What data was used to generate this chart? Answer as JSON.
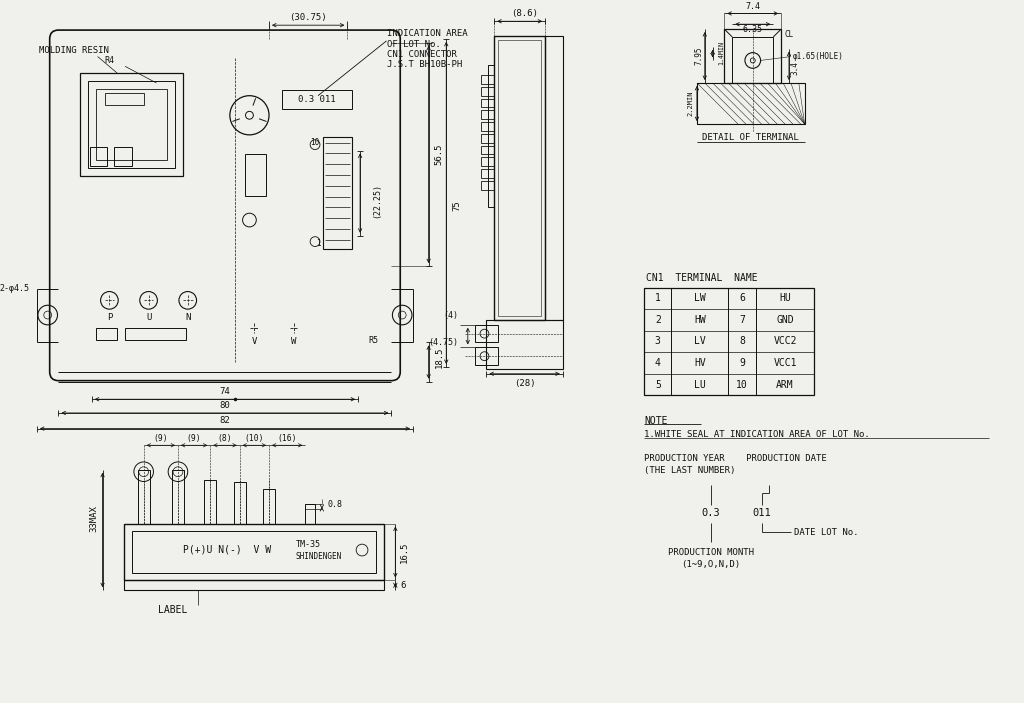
{
  "bg_color": "#f0f0ec",
  "line_color": "#111111",
  "cn1_rows": [
    [
      "1",
      "LW",
      "6",
      "HU"
    ],
    [
      "2",
      "HW",
      "7",
      "GND"
    ],
    [
      "3",
      "LV",
      "8",
      "VCC2"
    ],
    [
      "4",
      "HV",
      "9",
      "VCC1"
    ],
    [
      "5",
      "LU",
      "10",
      "ARM"
    ]
  ]
}
